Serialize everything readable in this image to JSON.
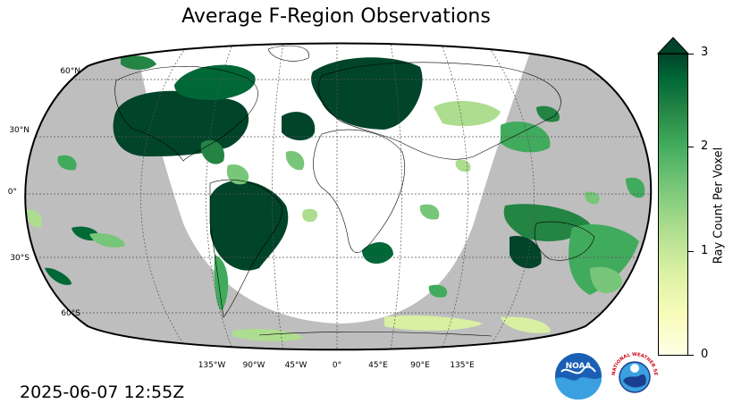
{
  "title": "Average F-Region Observations",
  "timestamp": "2025-06-07 12:55Z",
  "map": {
    "projection": "robinson",
    "night_shading_color": "#bebebe",
    "land_outline_color": "#000000",
    "gridline_style": "dashed",
    "lat_labels": [
      "60°N",
      "30°N",
      "0°",
      "30°S",
      "60°S"
    ],
    "lon_labels": [
      "135°W",
      "90°W",
      "45°W",
      "0°",
      "45°E",
      "90°E",
      "135°E"
    ]
  },
  "colorbar": {
    "label": "Ray Count Per Voxel",
    "ticks": [
      "0",
      "1",
      "2",
      "3"
    ],
    "range": [
      0,
      3
    ],
    "extend": "max",
    "colormap": "YlGn",
    "colors": [
      "#ffffe5",
      "#f7fcb9",
      "#d9f0a3",
      "#addd8e",
      "#78c679",
      "#41ab5d",
      "#238443",
      "#006837",
      "#00442a"
    ]
  },
  "logos": {
    "noaa": {
      "text": "NOAA",
      "icon": "noaa-logo-icon"
    },
    "nws": {
      "text": "NATIONAL WEATHER SERVICE",
      "icon": "nws-logo-icon"
    }
  }
}
